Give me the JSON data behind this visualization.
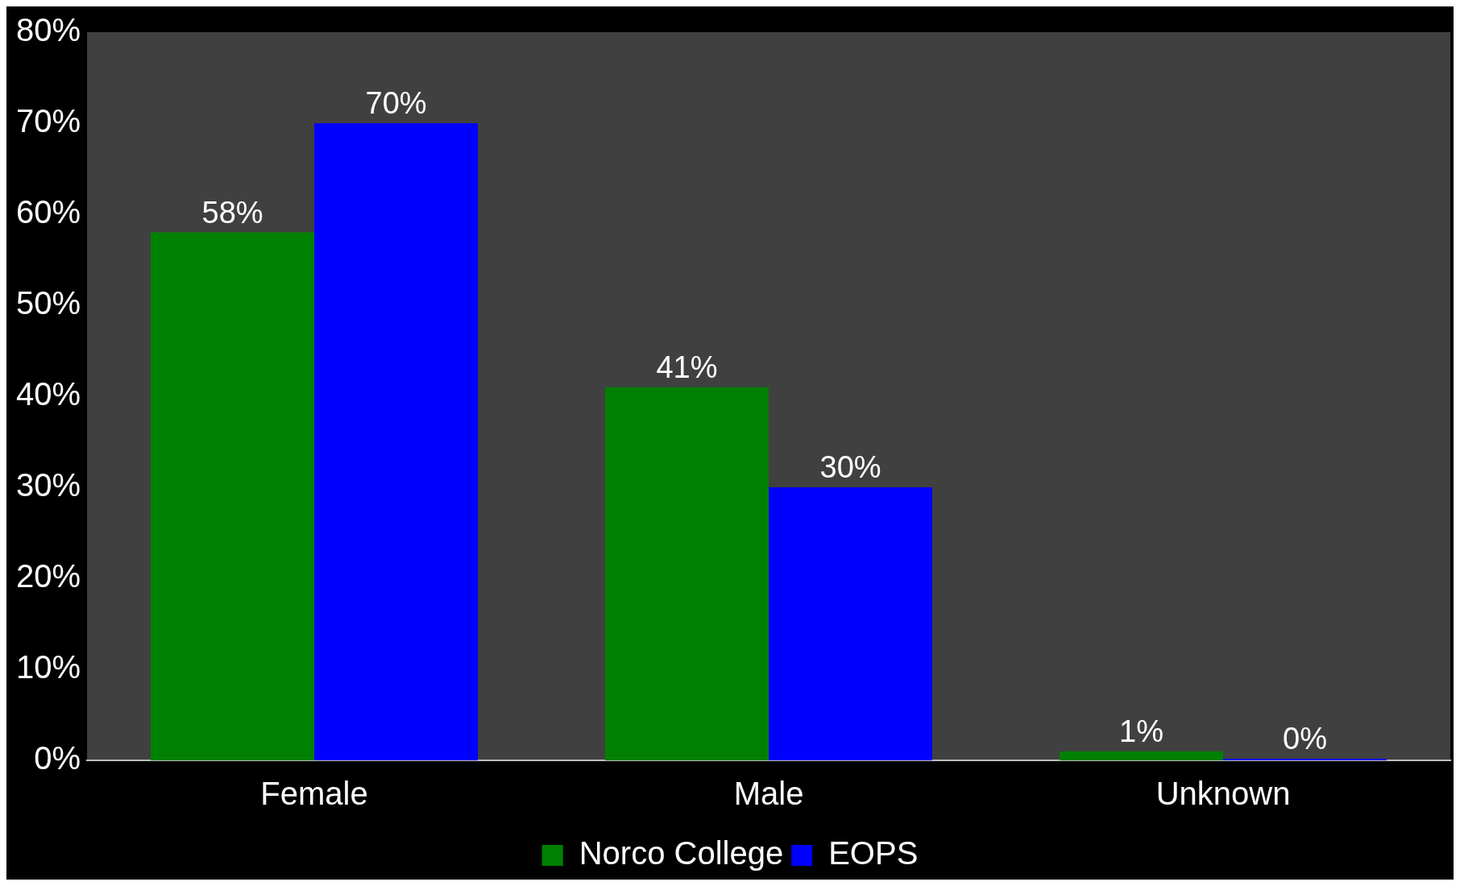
{
  "chart_data": {
    "type": "bar",
    "categories": [
      "Female",
      "Male",
      "Unknown"
    ],
    "series": [
      {
        "name": "Norco College",
        "color": "#008000",
        "values": [
          58,
          41,
          1
        ],
        "value_labels": [
          "58%",
          "41%",
          "1%"
        ]
      },
      {
        "name": "EOPS",
        "color": "#0000ff",
        "values": [
          70,
          30,
          0
        ],
        "value_labels": [
          "70%",
          "30%",
          "0%"
        ]
      }
    ],
    "ylim": [
      0,
      80
    ],
    "yticks": [
      {
        "value": 0,
        "label": "0%"
      },
      {
        "value": 10,
        "label": "10%"
      },
      {
        "value": 20,
        "label": "20%"
      },
      {
        "value": 30,
        "label": "30%"
      },
      {
        "value": 40,
        "label": "40%"
      },
      {
        "value": 50,
        "label": "50%"
      },
      {
        "value": 60,
        "label": "60%"
      },
      {
        "value": 70,
        "label": "70%"
      },
      {
        "value": 80,
        "label": "80%"
      }
    ],
    "grid": false,
    "legend": "bottom"
  }
}
